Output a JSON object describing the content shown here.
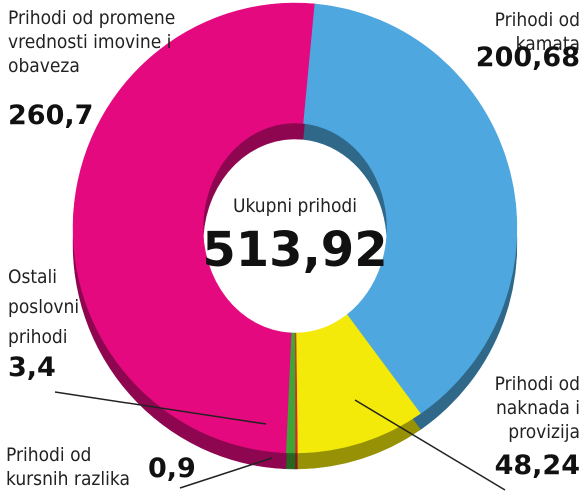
{
  "chart_data": {
    "type": "donut",
    "categories": [
      "Prihodi od kamata",
      "Prihodi od naknada i provizija",
      "Prihodi od kursnih razlika",
      "Ostali poslovni prihodi",
      "Prihodi od promene vrednosti imovine i obaveza"
    ],
    "values": [
      200.68,
      48.24,
      0.9,
      3.4,
      260.7
    ],
    "value_labels": [
      "200,68",
      "48,24",
      "0,9",
      "3,4",
      "260,7"
    ],
    "colors": [
      "#4ea7df",
      "#f3ea0a",
      "#d9262c",
      "#3fa535",
      "#e4097f"
    ],
    "center_title": "Ukupni prihodi",
    "center_value": 513.92,
    "center_value_label": "513,92"
  }
}
